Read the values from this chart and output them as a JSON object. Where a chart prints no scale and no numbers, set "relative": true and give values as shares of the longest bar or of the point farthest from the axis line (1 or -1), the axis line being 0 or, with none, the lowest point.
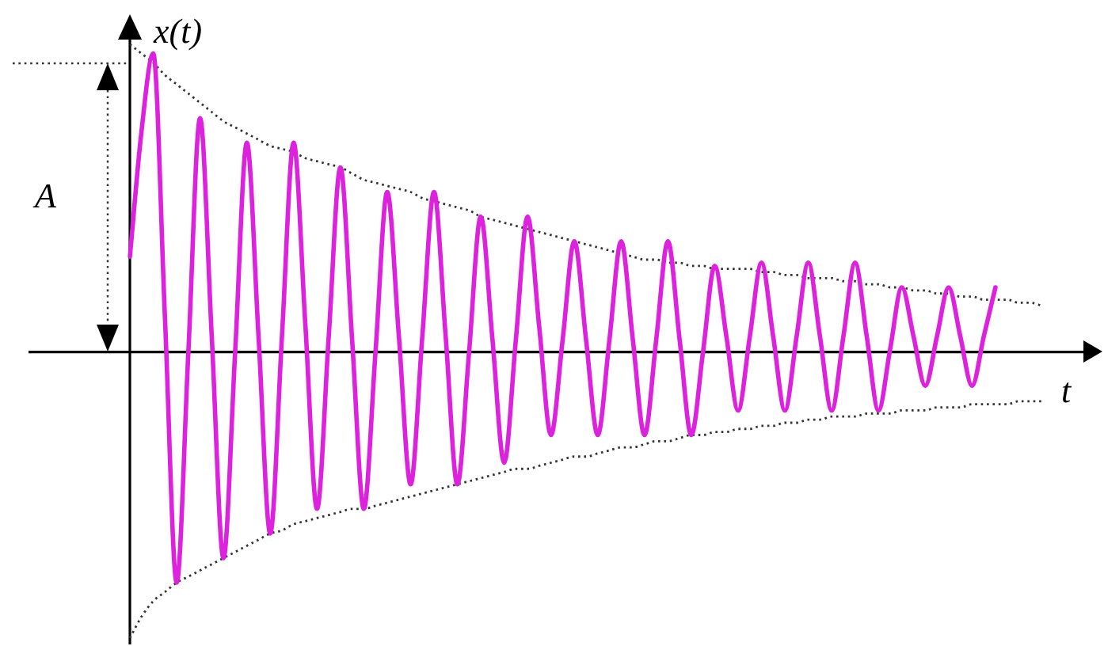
{
  "chart_data": {
    "type": "line",
    "relative": true,
    "xlabel": "t",
    "ylabel": "x(t)",
    "marker": "none",
    "categories": [
      null,
      null,
      null,
      null,
      null,
      null,
      null,
      null,
      null,
      null,
      null,
      null,
      null,
      null,
      null,
      null,
      null,
      null,
      null,
      null,
      null,
      null,
      null,
      null,
      null,
      null,
      null,
      null,
      null,
      null,
      null,
      null,
      null,
      null,
      null,
      null,
      null,
      null,
      null,
      null,
      null,
      null,
      null,
      null,
      null,
      null,
      null,
      null,
      null,
      null,
      null,
      null,
      null,
      null,
      null,
      null,
      null,
      null,
      null,
      null,
      null,
      null,
      null,
      null,
      null,
      null,
      null,
      null,
      null,
      null,
      null,
      null,
      null,
      null,
      null,
      null,
      null,
      null,
      null
    ],
    "series": [
      {
        "color": "#dd22dd",
        "line_style": "solid",
        "values": [
          0.31,
          0.72,
          0.97,
          0.11,
          -0.75,
          0.0,
          0.76,
          0.05,
          -0.67,
          0.0,
          0.68,
          0.05,
          -0.59,
          0.05,
          0.68,
          0.09,
          -0.51,
          0.05,
          0.6,
          0.04,
          -0.51,
          0.0,
          0.52,
          0.05,
          -0.43,
          0.05,
          0.52,
          0.05,
          -0.43,
          0.0,
          0.44,
          0.04,
          -0.36,
          0.04,
          0.44,
          0.08,
          -0.27,
          0.04,
          0.36,
          0.04,
          -0.27,
          0.04,
          0.36,
          0.04,
          -0.27,
          0.04,
          0.36,
          0.04,
          -0.27,
          0.0,
          0.28,
          0.05,
          -0.19,
          0.05,
          0.29,
          0.05,
          -0.19,
          0.05,
          0.29,
          0.05,
          -0.19,
          0.05,
          0.29,
          0.05,
          -0.19,
          0.01,
          0.21,
          0.05,
          -0.11,
          0.05,
          0.21,
          0.05,
          -0.11,
          0.05,
          0.21,
          null,
          null,
          null,
          null
        ]
      },
      {
        "color": "#333333",
        "line_style": "dotted",
        "values": [
          1.0,
          0.97,
          0.94,
          0.9,
          0.87,
          0.84,
          0.81,
          0.78,
          0.75,
          0.73,
          0.71,
          0.69,
          0.67,
          0.66,
          0.65,
          0.63,
          0.62,
          0.61,
          0.6,
          0.58,
          0.56,
          0.55,
          0.54,
          0.53,
          0.52,
          0.5,
          0.49,
          0.48,
          0.47,
          0.46,
          0.44,
          0.43,
          0.42,
          0.41,
          0.4,
          0.39,
          0.38,
          0.37,
          0.36,
          0.35,
          0.34,
          0.33,
          0.32,
          0.31,
          0.3,
          0.3,
          0.29,
          0.29,
          0.28,
          0.28,
          0.27,
          0.27,
          0.27,
          0.27,
          0.26,
          0.26,
          0.25,
          0.25,
          0.24,
          0.24,
          0.24,
          0.23,
          0.23,
          0.22,
          0.22,
          0.21,
          0.21,
          0.2,
          0.2,
          0.19,
          0.19,
          0.18,
          0.18,
          0.17,
          0.17,
          0.17,
          0.16,
          0.16,
          0.15
        ]
      },
      {
        "color": "#333333",
        "line_style": "dotted",
        "values": [
          -0.93,
          -0.86,
          -0.81,
          -0.78,
          -0.75,
          -0.73,
          -0.71,
          -0.69,
          -0.67,
          -0.65,
          -0.63,
          -0.61,
          -0.59,
          -0.58,
          -0.56,
          -0.55,
          -0.54,
          -0.53,
          -0.52,
          -0.51,
          -0.51,
          -0.5,
          -0.49,
          -0.48,
          -0.47,
          -0.46,
          -0.45,
          -0.44,
          -0.43,
          -0.42,
          -0.41,
          -0.4,
          -0.39,
          -0.38,
          -0.38,
          -0.37,
          -0.36,
          -0.35,
          -0.34,
          -0.34,
          -0.33,
          -0.32,
          -0.31,
          -0.31,
          -0.3,
          -0.29,
          -0.29,
          -0.28,
          -0.27,
          -0.27,
          -0.26,
          -0.26,
          -0.25,
          -0.25,
          -0.24,
          -0.24,
          -0.23,
          -0.23,
          -0.22,
          -0.22,
          -0.21,
          -0.21,
          -0.21,
          -0.2,
          -0.2,
          -0.2,
          -0.19,
          -0.19,
          -0.19,
          -0.18,
          -0.18,
          -0.18,
          -0.17,
          -0.17,
          -0.17,
          -0.17,
          -0.16,
          -0.16,
          -0.16
        ]
      }
    ],
    "annotations": [
      "A"
    ]
  }
}
